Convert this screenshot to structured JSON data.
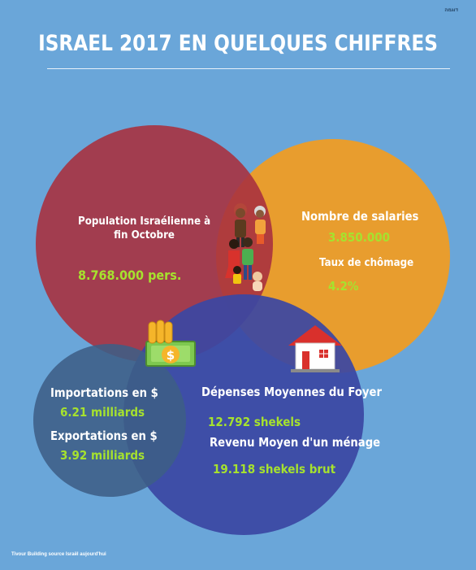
{
  "corner_mark": "דוגמה",
  "title": "ISRAEL 2017 EN QUELQUES CHIFFRES",
  "population": {
    "label_line1": "Population  Israélienne à",
    "label_line2": "fin Octobre",
    "value": "8.768.000  pers."
  },
  "employment": {
    "salaries_label": "Nombre de salaries",
    "salaries_value": "3.850.000",
    "unemployment_label": "Taux de chômage",
    "unemployment_value": "4.2%"
  },
  "trade": {
    "imports_label": "Importations en $",
    "imports_value": "6.21 milliards",
    "exports_label": "Exportations en $",
    "exports_value": "3.92 milliards"
  },
  "household": {
    "spending_label": "Dépenses Moyennes du Foyer",
    "spending_value": "12.792 shekels",
    "income_label": "Revenu Moyen d'un ménage",
    "income_value": "19.118 shekels brut"
  },
  "source": "Tivour Building source Israël aujourd'hui",
  "colors": {
    "background": "#6aa6d9",
    "population_circle": "#a8323f",
    "employment_circle": "#f39c1f",
    "household_circle": "#3b47a3",
    "trade_circle": "#3e5f86",
    "value_green": "#a6e22e"
  },
  "icons": [
    "family-icon",
    "money-icon",
    "house-icon"
  ]
}
